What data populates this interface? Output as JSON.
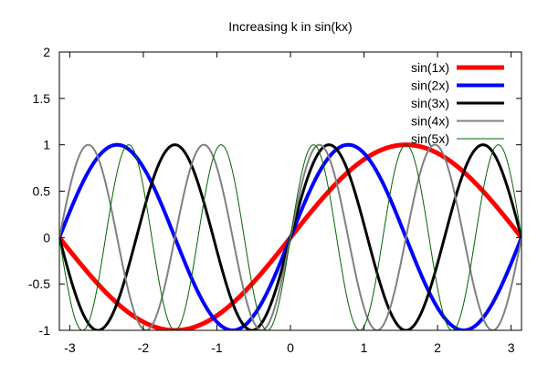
{
  "chart_data": {
    "type": "line",
    "title": "Increasing k in sin(kx)",
    "xlabel": "",
    "ylabel": "",
    "xlim": [
      -3.14159,
      3.14159
    ],
    "ylim": [
      -1,
      2
    ],
    "xticks": [
      -3,
      -2,
      -1,
      0,
      1,
      2,
      3
    ],
    "xtick_labels": [
      "-3",
      "-2",
      "-1",
      "0",
      "1",
      "2",
      "3"
    ],
    "yticks": [
      -1,
      -0.5,
      0,
      0.5,
      1,
      1.5,
      2
    ],
    "ytick_labels": [
      "-1",
      "-0.5",
      "0",
      "0.5",
      "1",
      "1.5",
      "2"
    ],
    "grid": false,
    "legend_position": "top-right",
    "series": [
      {
        "name": "sin(1x)",
        "k": 1,
        "color": "#ff0000"
      },
      {
        "name": "sin(2x)",
        "k": 2,
        "color": "#0000ff"
      },
      {
        "name": "sin(3x)",
        "k": 3,
        "color": "#000000"
      },
      {
        "name": "sin(4x)",
        "k": 4,
        "color": "#808080"
      },
      {
        "name": "sin(5x)",
        "k": 5,
        "color": "#006400"
      }
    ]
  }
}
